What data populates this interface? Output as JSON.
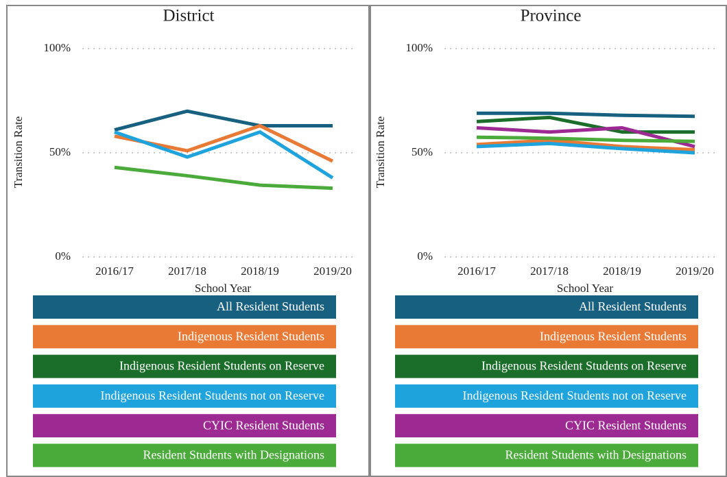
{
  "chart_data": [
    {
      "type": "line",
      "title": "District",
      "xlabel": "School Year",
      "ylabel": "Transition Rate",
      "categories": [
        "2016/17",
        "2017/18",
        "2018/19",
        "2019/20"
      ],
      "ylim": [
        0,
        100
      ],
      "yticks": [
        {
          "value": 0,
          "label": "0%"
        },
        {
          "value": 50,
          "label": "50%"
        },
        {
          "value": 100,
          "label": "100%"
        }
      ],
      "grid": true,
      "series": [
        {
          "name": "All Resident Students",
          "color": "#17607f",
          "values": [
            61,
            70,
            63,
            63
          ]
        },
        {
          "name": "Indigenous Resident Students",
          "color": "#e87a36",
          "values": [
            58,
            51,
            63,
            46
          ]
        },
        {
          "name": "Indigenous Resident Students on Reserve",
          "color": "#1b6e2a",
          "values": [
            null,
            null,
            null,
            null
          ]
        },
        {
          "name": "Indigenous Resident Students not on Reserve",
          "color": "#1ea3dc",
          "values": [
            60,
            48,
            60,
            38
          ]
        },
        {
          "name": "CYIC Resident Students",
          "color": "#9c2a92",
          "values": [
            null,
            null,
            null,
            null
          ]
        },
        {
          "name": "Resident Students with Designations",
          "color": "#4aab3a",
          "values": [
            43,
            39,
            34.5,
            33
          ]
        }
      ]
    },
    {
      "type": "line",
      "title": "Province",
      "xlabel": "School Year",
      "ylabel": "Transition Rate",
      "categories": [
        "2016/17",
        "2017/18",
        "2018/19",
        "2019/20"
      ],
      "ylim": [
        0,
        100
      ],
      "yticks": [
        {
          "value": 0,
          "label": "0%"
        },
        {
          "value": 50,
          "label": "50%"
        },
        {
          "value": 100,
          "label": "100%"
        }
      ],
      "grid": true,
      "series": [
        {
          "name": "All Resident Students",
          "color": "#17607f",
          "values": [
            69,
            69,
            68,
            67.5
          ]
        },
        {
          "name": "Indigenous Resident Students",
          "color": "#e87a36",
          "values": [
            54,
            56,
            53,
            51.5
          ]
        },
        {
          "name": "Indigenous Resident Students on Reserve",
          "color": "#1b6e2a",
          "values": [
            65,
            67,
            60,
            60
          ]
        },
        {
          "name": "Indigenous Resident Students not on Reserve",
          "color": "#1ea3dc",
          "values": [
            53,
            54.5,
            52,
            50
          ]
        },
        {
          "name": "CYIC Resident Students",
          "color": "#9c2a92",
          "values": [
            62,
            60,
            62,
            53
          ]
        },
        {
          "name": "Resident Students with Designations",
          "color": "#4aab3a",
          "values": [
            57.5,
            57,
            56,
            55.5
          ]
        }
      ]
    }
  ]
}
